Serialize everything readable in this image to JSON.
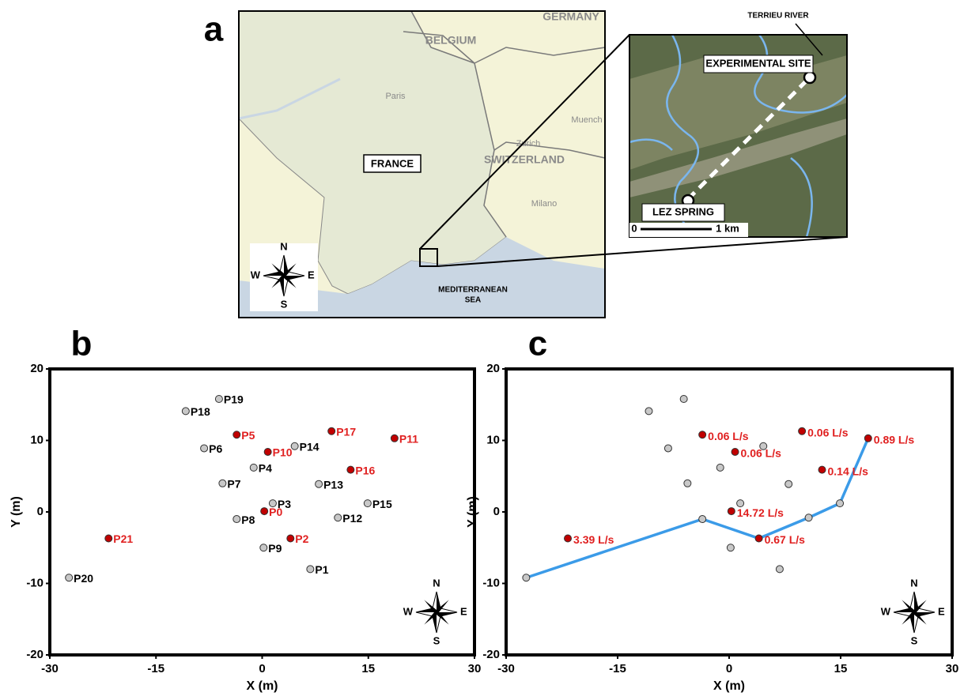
{
  "map": {
    "panel": "a",
    "places": [
      "GERMANY",
      "BELGIUM",
      "Paris",
      "Muench",
      "Zurich",
      "SWITZERLAND",
      "Milano"
    ],
    "country": "FRANCE",
    "sea": [
      "MEDITERRANEAN",
      "SEA"
    ],
    "compass": [
      "N",
      "W",
      "E",
      "S"
    ],
    "inset": {
      "river": "TERRIEU RIVER",
      "site": "EXPERIMENTAL SITE",
      "spring": "LEZ SPRING",
      "scale": [
        "0",
        "1 km"
      ]
    }
  },
  "chart_data": [
    {
      "type": "scatter",
      "panel": "b",
      "xlabel": "X (m)",
      "ylabel": "Y (m)",
      "xlim": [
        -30,
        30
      ],
      "ylim": [
        -20,
        20
      ],
      "xticks": [
        -30,
        -15,
        0,
        15,
        30
      ],
      "yticks": [
        -20,
        -10,
        0,
        10,
        20
      ],
      "compass": [
        "N",
        "W",
        "E",
        "S"
      ],
      "series": [
        {
          "color": "#c8c8c8",
          "label_color": "#000000",
          "labels": [
            "P1",
            "P3",
            "P4",
            "P6",
            "P7",
            "P8",
            "P9",
            "P12",
            "P13",
            "P14",
            "P15",
            "P18",
            "P19",
            "P20"
          ],
          "x": [
            6.8,
            1.5,
            -1.2,
            -8.2,
            -5.6,
            -3.6,
            0.2,
            10.7,
            8.0,
            4.6,
            14.9,
            -10.8,
            -6.1,
            -27.3
          ],
          "y": [
            -8.0,
            1.2,
            6.2,
            8.9,
            4.0,
            -1.0,
            -5.0,
            -0.8,
            3.9,
            9.2,
            1.2,
            14.1,
            15.8,
            -9.2
          ]
        },
        {
          "color": "#c00000",
          "label_color": "#e02020",
          "labels": [
            "P0",
            "P2",
            "P5",
            "P10",
            "P11",
            "P16",
            "P17",
            "P21"
          ],
          "x": [
            0.3,
            4.0,
            -3.6,
            0.8,
            18.7,
            12.5,
            9.8,
            -21.7
          ],
          "y": [
            0.1,
            -3.7,
            10.8,
            8.4,
            10.3,
            5.9,
            11.3,
            -3.7
          ]
        }
      ]
    },
    {
      "type": "scatter",
      "panel": "c",
      "xlabel": "X (m)",
      "ylabel": "Y (m)",
      "xlim": [
        -30,
        30
      ],
      "ylim": [
        -20,
        20
      ],
      "xticks": [
        -30,
        -15,
        0,
        15,
        30
      ],
      "yticks": [
        -20,
        -10,
        0,
        10,
        20
      ],
      "compass": [
        "N",
        "W",
        "E",
        "S"
      ],
      "series": [
        {
          "color": "#c8c8c8",
          "x": [
            6.8,
            1.5,
            -1.2,
            -8.2,
            -5.6,
            -3.6,
            0.2,
            10.7,
            8.0,
            4.6,
            14.9,
            -10.8,
            -6.1,
            -27.3
          ],
          "y": [
            -8.0,
            1.2,
            6.2,
            8.9,
            4.0,
            -1.0,
            -5.0,
            -0.8,
            3.9,
            9.2,
            1.2,
            14.1,
            15.8,
            -9.2
          ]
        },
        {
          "color": "#c00000",
          "label_color": "#e02020",
          "x": [
            0.3,
            4.0,
            -3.6,
            0.8,
            18.7,
            12.5,
            9.8,
            -21.7
          ],
          "y": [
            0.1,
            -3.7,
            10.8,
            8.4,
            10.3,
            5.9,
            11.3,
            -3.7
          ],
          "values": [
            14.72,
            0.67,
            0.06,
            0.06,
            0.89,
            0.14,
            0.06,
            3.39
          ],
          "value_labels": [
            "14.72 L/s",
            "0.67 L/s",
            "0.06 L/s",
            "0.06 L/s",
            "0.89  L/s",
            "0.14 L/s",
            "0.06 L/s",
            "3.39 L/s"
          ]
        },
        {
          "type": "line",
          "color": "#3b9be8",
          "x": [
            -27.3,
            -3.6,
            4.0,
            10.7,
            14.9,
            18.7
          ],
          "y": [
            -9.2,
            -1.0,
            -3.7,
            -0.8,
            1.2,
            10.3
          ]
        }
      ]
    }
  ]
}
